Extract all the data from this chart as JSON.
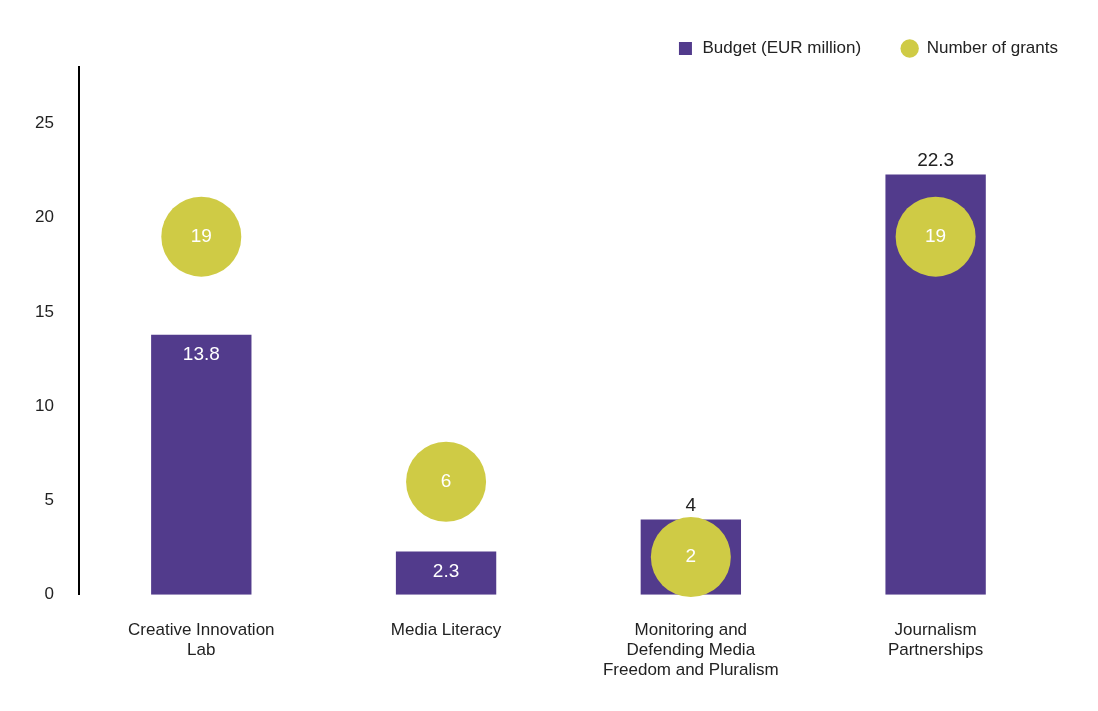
{
  "chart_data": {
    "type": "bar",
    "categories": [
      "Creative Innovation Lab",
      "Media Literacy",
      "Monitoring and Defending Media Freedom and Pluralism",
      "Journalism Partnerships"
    ],
    "series": [
      {
        "name": "Budget (EUR million)",
        "color": "#523b8c",
        "values": [
          13.8,
          2.3,
          4,
          22.3
        ]
      },
      {
        "name": "Number of grants",
        "type": "scatter",
        "color": "#cfcb45",
        "values": [
          19,
          6,
          2,
          19
        ]
      }
    ],
    "ylim": [
      0,
      28
    ],
    "yticks": [
      0,
      5,
      10,
      15,
      20,
      25
    ],
    "grid": false,
    "legend": "top right",
    "marker": "circle",
    "data_labels": true
  }
}
